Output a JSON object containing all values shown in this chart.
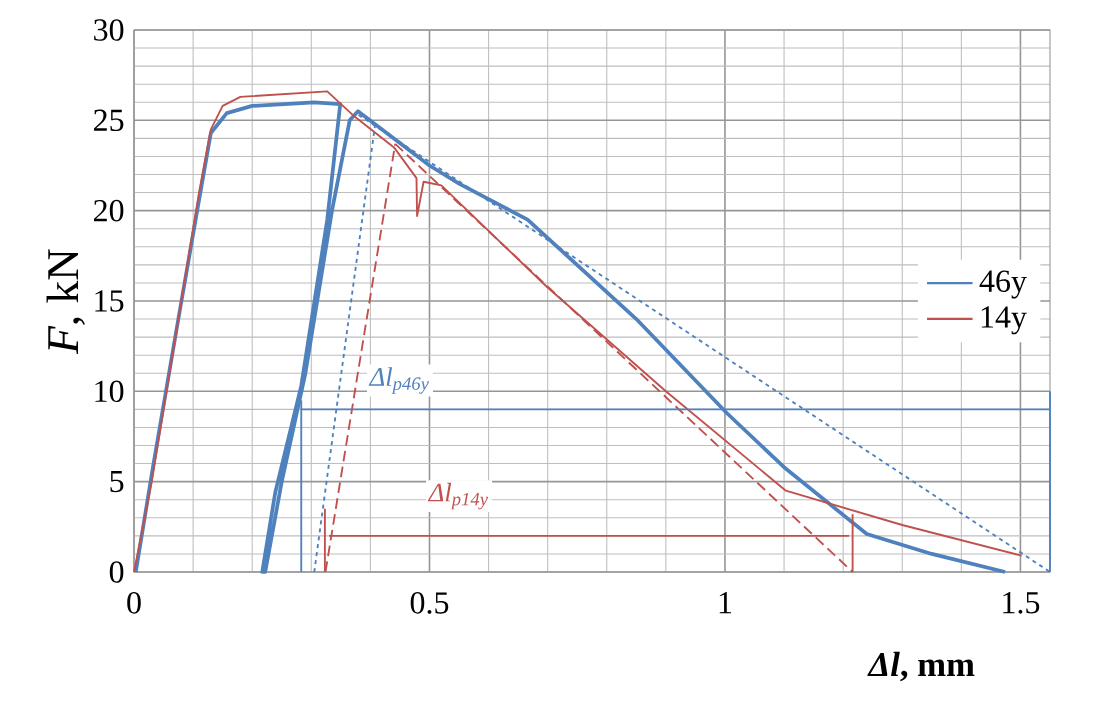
{
  "chart_data": {
    "type": "line",
    "xlabel": "*Δl*, mm",
    "ylabel": "*F*, kN",
    "xlim": [
      0,
      1.55
    ],
    "ylim": [
      0,
      30
    ],
    "xticks": [
      0,
      0.5,
      1,
      1.5
    ],
    "yticks": [
      0,
      5,
      10,
      15,
      20,
      25,
      30
    ],
    "grid": true,
    "legend": "right",
    "annotations": [
      {
        "text": "Δl$_{p46y}$",
        "x": 0.45,
        "y": 10.6
      },
      {
        "text": "Δl$_{p14y}$",
        "x": 0.55,
        "y": 4.2
      }
    ],
    "series": [
      {
        "name": "46y",
        "color": "#4f81bd",
        "x": [
          0.003,
          0.032,
          0.075,
          0.108,
          0.13,
          0.157,
          0.2,
          0.305,
          0.349,
          0.327,
          0.283,
          0.239,
          0.217,
          0.222,
          0.25,
          0.29,
          0.335,
          0.365,
          0.379,
          0.5,
          0.55,
          0.666,
          0.85,
          1.003,
          1.1,
          1.24,
          1.35,
          1.474
        ],
        "values": [
          0,
          5.8,
          14,
          20.2,
          24.3,
          25.4,
          25.8,
          26,
          25.9,
          19.5,
          10.3,
          4.4,
          0,
          0,
          5,
          11,
          20,
          25,
          25.5,
          22.5,
          21.5,
          19.5,
          14,
          8.8,
          5.8,
          2.1,
          1,
          0
        ]
      },
      {
        "name": "14y",
        "color": "#c0504d",
        "x": [
          0,
          0.03,
          0.08,
          0.11,
          0.13,
          0.15,
          0.18,
          0.327,
          0.37,
          0.44,
          0.478,
          0.479,
          0.49,
          0.52,
          0.698,
          0.9,
          1.103,
          1.3,
          1.502
        ],
        "values": [
          0,
          5,
          15,
          21,
          24.5,
          25.8,
          26.3,
          26.6,
          25.3,
          23.5,
          21.8,
          19.7,
          21.6,
          21.4,
          15.8,
          10,
          4.5,
          2.6,
          0.9
        ]
      },
      {
        "color": "#4f81bd",
        "line_style": "dotted",
        "x": [
          0.305,
          0.409
        ],
        "values": [
          0,
          25
        ]
      },
      {
        "color": "#4f81bd",
        "line_style": "dotted",
        "x": [
          0.38,
          1.55
        ],
        "values": [
          25.3,
          0
        ]
      },
      {
        "color": "#c0504d",
        "line_style": "dashed",
        "x": [
          0.324,
          0.442
        ],
        "values": [
          0,
          23.7
        ]
      },
      {
        "color": "#c0504d",
        "line_style": "dashed",
        "x": [
          0.442,
          1.216
        ],
        "values": [
          23.7,
          0
        ]
      },
      {
        "color": "#4f81bd",
        "x": [
          0.283,
          1.55
        ],
        "values": [
          9,
          9
        ]
      },
      {
        "color": "#4f81bd",
        "x": [
          0.283,
          0.283
        ],
        "values": [
          0,
          9.5
        ]
      },
      {
        "color": "#4f81bd",
        "x": [
          1.55,
          1.55
        ],
        "values": [
          0,
          10
        ]
      },
      {
        "color": "#c0504d",
        "x": [
          0.33,
          1.21
        ],
        "values": [
          2,
          2
        ]
      },
      {
        "color": "#c0504d",
        "x": [
          0.323,
          0.323
        ],
        "values": [
          0,
          3.5
        ]
      },
      {
        "color": "#c0504d",
        "x": [
          1.216,
          1.216
        ],
        "values": [
          0,
          3.2
        ]
      }
    ]
  }
}
